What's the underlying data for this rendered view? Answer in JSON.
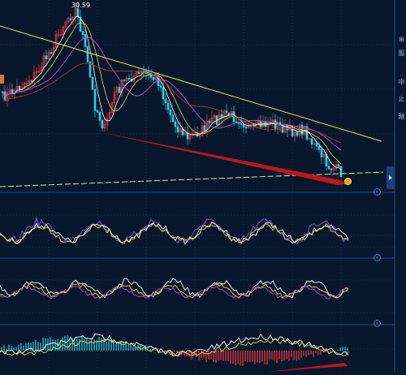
{
  "chart_data": {
    "type": "candlestick",
    "peak_label": "30.59",
    "panels": [
      {
        "name": "price",
        "overlays": [
          "moving-averages",
          "trendline-down",
          "support-line",
          "divergence-arrow"
        ]
      },
      {
        "name": "oscillator-1"
      },
      {
        "name": "oscillator-2"
      },
      {
        "name": "macd"
      }
    ],
    "side_labels": [
      "⊞",
      "股",
      "中",
      "止",
      "融"
    ],
    "colors": {
      "background": "#08172c",
      "candle_up": "#ff3b3b",
      "candle_down": "#2fd1e6",
      "ma_fast": "#ffffff",
      "ma_mid": "#e6d74a",
      "ma_slow": "#c44cc9",
      "ma_long": "#b0343f",
      "trendline": "#e8e55a",
      "divergence": "#c0151b",
      "grid": "#1a4a78"
    }
  }
}
